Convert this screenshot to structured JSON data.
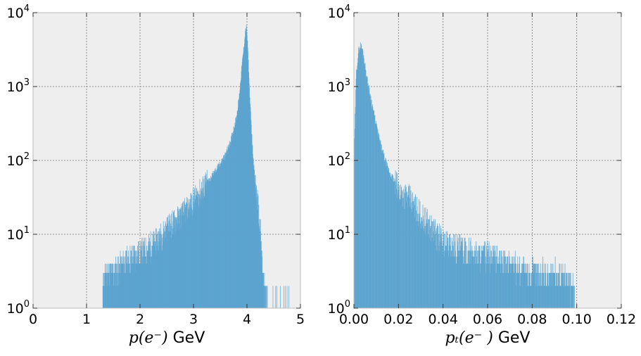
{
  "chart_data": [
    {
      "type": "histogram",
      "xlabel_math": "p(e⁻)",
      "xlabel_unit": " GeV",
      "xlim": [
        0,
        5
      ],
      "ylim": [
        1,
        10000
      ],
      "yscale": "log",
      "grid": true,
      "xticks": [
        "0",
        "1",
        "2",
        "3",
        "4",
        "5"
      ],
      "yticks": [
        {
          "base": "10",
          "exp": "0"
        },
        {
          "base": "10",
          "exp": "1"
        },
        {
          "base": "10",
          "exp": "2"
        },
        {
          "base": "10",
          "exp": "3"
        },
        {
          "base": "10",
          "exp": "4"
        }
      ],
      "color": "#5ba3cf",
      "shape_points": [
        [
          1.3,
          2
        ],
        [
          1.35,
          3
        ],
        [
          1.5,
          3
        ],
        [
          1.7,
          4
        ],
        [
          1.9,
          5
        ],
        [
          2.1,
          6
        ],
        [
          2.3,
          8
        ],
        [
          2.5,
          12
        ],
        [
          2.7,
          16
        ],
        [
          2.9,
          22
        ],
        [
          3.1,
          35
        ],
        [
          3.3,
          55
        ],
        [
          3.5,
          90
        ],
        [
          3.6,
          120
        ],
        [
          3.7,
          190
        ],
        [
          3.8,
          380
        ],
        [
          3.85,
          700
        ],
        [
          3.9,
          1800
        ],
        [
          3.95,
          4000
        ],
        [
          3.98,
          6500
        ],
        [
          4.0,
          5000
        ],
        [
          4.02,
          2500
        ],
        [
          4.05,
          700
        ],
        [
          4.1,
          150
        ],
        [
          4.15,
          50
        ],
        [
          4.2,
          25
        ],
        [
          4.25,
          10
        ],
        [
          4.3,
          2
        ],
        [
          4.4,
          1
        ],
        [
          4.8,
          1
        ]
      ]
    },
    {
      "type": "histogram",
      "xlabel_math": "pₜ(e⁻ )",
      "xlabel_unit": " GeV",
      "xlim": [
        0,
        0.12
      ],
      "ylim": [
        1,
        10000
      ],
      "yscale": "log",
      "grid": true,
      "xticks": [
        "0.00",
        "0.02",
        "0.04",
        "0.06",
        "0.08",
        "0.10",
        "0.12"
      ],
      "yticks": [
        {
          "base": "10",
          "exp": "0"
        },
        {
          "base": "10",
          "exp": "1"
        },
        {
          "base": "10",
          "exp": "2"
        },
        {
          "base": "10",
          "exp": "3"
        },
        {
          "base": "10",
          "exp": "4"
        }
      ],
      "color": "#5ba3cf",
      "shape_points": [
        [
          0.0,
          100
        ],
        [
          0.001,
          1500
        ],
        [
          0.002,
          3000
        ],
        [
          0.003,
          3700
        ],
        [
          0.004,
          3000
        ],
        [
          0.005,
          1900
        ],
        [
          0.006,
          1200
        ],
        [
          0.008,
          600
        ],
        [
          0.01,
          300
        ],
        [
          0.012,
          160
        ],
        [
          0.015,
          80
        ],
        [
          0.02,
          40
        ],
        [
          0.025,
          30
        ],
        [
          0.03,
          18
        ],
        [
          0.035,
          12
        ],
        [
          0.04,
          8
        ],
        [
          0.05,
          6
        ],
        [
          0.06,
          5
        ],
        [
          0.07,
          4
        ],
        [
          0.08,
          3
        ],
        [
          0.09,
          3
        ],
        [
          0.099,
          2
        ]
      ]
    }
  ]
}
